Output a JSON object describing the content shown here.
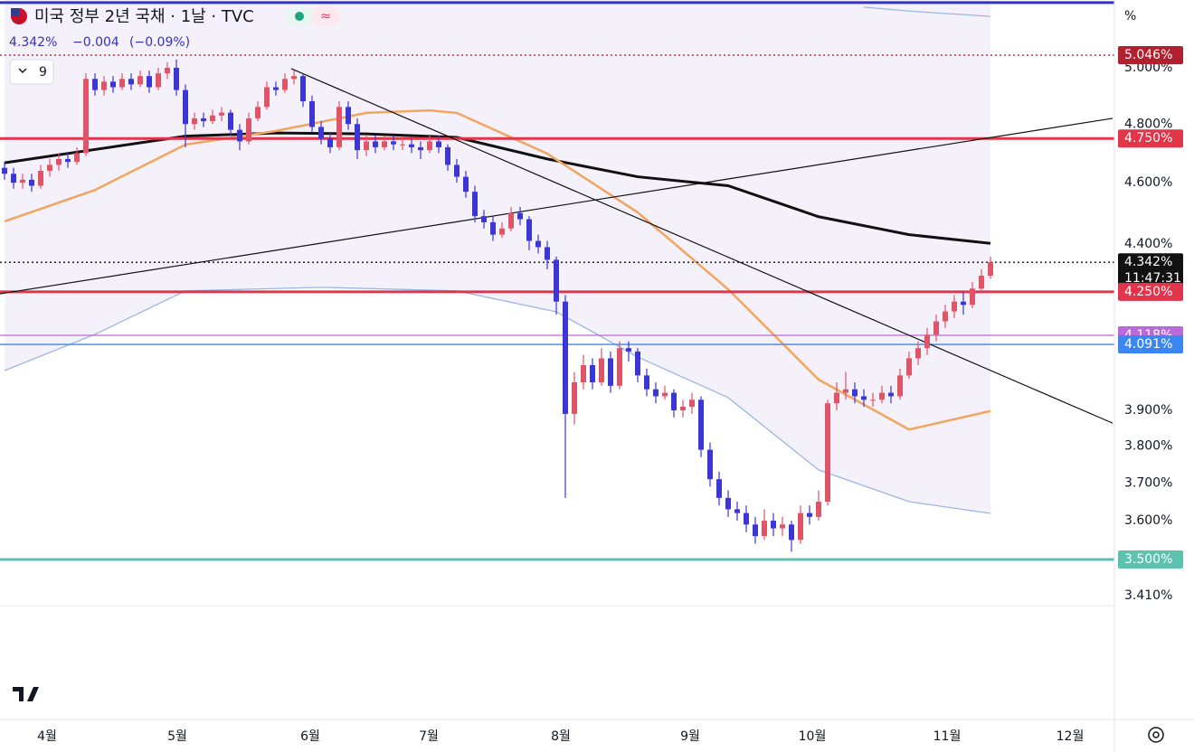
{
  "header": {
    "title": "미국 정부 2년 국채 · 1날 · TVC",
    "last": "4.342%",
    "change": "−0.004",
    "change_pct": "(−0.09%)",
    "collapsed_count": "9",
    "axis_unit": "%"
  },
  "chart_data": {
    "type": "candlestick",
    "log_scale": true,
    "grid": false,
    "up_color": "#e05468",
    "down_color": "#3c36d4",
    "xlim": [
      -0.5,
      122.7
    ],
    "ylim": [
      3.385,
      5.252
    ],
    "xticks": [
      {
        "value": 4.7,
        "label": "4월"
      },
      {
        "value": 19.1,
        "label": "5월"
      },
      {
        "value": 33.8,
        "label": "6월"
      },
      {
        "value": 46.9,
        "label": "7월"
      },
      {
        "value": 61.5,
        "label": "8월"
      },
      {
        "value": 75.8,
        "label": "9월"
      },
      {
        "value": 89.3,
        "label": "10월"
      },
      {
        "value": 104.2,
        "label": "11월"
      },
      {
        "value": 117.8,
        "label": "12월"
      }
    ],
    "yticks": [
      {
        "value": 3.41,
        "label": "3.410%"
      },
      {
        "value": 3.6,
        "label": "3.600%"
      },
      {
        "value": 3.7,
        "label": "3.700%"
      },
      {
        "value": 3.8,
        "label": "3.800%"
      },
      {
        "value": 3.9,
        "label": "3.900%"
      },
      {
        "value": 4.4,
        "label": "4.400%"
      },
      {
        "value": 4.6,
        "label": "4.600%"
      },
      {
        "value": 4.8,
        "label": "4.800%"
      },
      {
        "value": 5.0,
        "label": "5.000%"
      }
    ],
    "candles": [
      [
        4.65,
        4.67,
        4.61,
        4.63
      ],
      [
        4.63,
        4.65,
        4.58,
        4.6
      ],
      [
        4.6,
        4.63,
        4.58,
        4.61
      ],
      [
        4.61,
        4.63,
        4.57,
        4.59
      ],
      [
        4.59,
        4.66,
        4.58,
        4.64
      ],
      [
        4.64,
        4.68,
        4.62,
        4.66
      ],
      [
        4.66,
        4.7,
        4.64,
        4.68
      ],
      [
        4.68,
        4.7,
        4.65,
        4.67
      ],
      [
        4.67,
        4.72,
        4.66,
        4.7
      ],
      [
        4.7,
        4.98,
        4.69,
        4.96
      ],
      [
        4.96,
        4.98,
        4.9,
        4.92
      ],
      [
        4.92,
        4.97,
        4.9,
        4.95
      ],
      [
        4.95,
        4.97,
        4.91,
        4.93
      ],
      [
        4.93,
        4.98,
        4.92,
        4.96
      ],
      [
        4.96,
        4.98,
        4.92,
        4.94
      ],
      [
        4.94,
        4.99,
        4.93,
        4.97
      ],
      [
        4.97,
        4.99,
        4.91,
        4.93
      ],
      [
        4.93,
        5.0,
        4.92,
        4.98
      ],
      [
        4.98,
        5.02,
        4.96,
        5.0
      ],
      [
        5.0,
        5.03,
        4.9,
        4.92
      ],
      [
        4.92,
        4.94,
        4.72,
        4.8
      ],
      [
        4.8,
        4.84,
        4.78,
        4.82
      ],
      [
        4.82,
        4.84,
        4.79,
        4.81
      ],
      [
        4.81,
        4.85,
        4.8,
        4.83
      ],
      [
        4.83,
        4.86,
        4.81,
        4.84
      ],
      [
        4.84,
        4.85,
        4.76,
        4.78
      ],
      [
        4.78,
        4.8,
        4.71,
        4.74
      ],
      [
        4.74,
        4.84,
        4.73,
        4.82
      ],
      [
        4.82,
        4.88,
        4.81,
        4.86
      ],
      [
        4.86,
        4.95,
        4.85,
        4.93
      ],
      [
        4.93,
        4.95,
        4.9,
        4.92
      ],
      [
        4.92,
        4.98,
        4.91,
        4.96
      ],
      [
        4.96,
        4.99,
        4.94,
        4.97
      ],
      [
        4.97,
        4.98,
        4.86,
        4.88
      ],
      [
        4.88,
        4.9,
        4.77,
        4.79
      ],
      [
        4.79,
        4.81,
        4.73,
        4.75
      ],
      [
        4.75,
        4.77,
        4.7,
        4.72
      ],
      [
        4.72,
        4.88,
        4.71,
        4.86
      ],
      [
        4.86,
        4.88,
        4.78,
        4.8
      ],
      [
        4.8,
        4.82,
        4.68,
        4.71
      ],
      [
        4.71,
        4.76,
        4.69,
        4.74
      ],
      [
        4.74,
        4.76,
        4.7,
        4.72
      ],
      [
        4.72,
        4.76,
        4.71,
        4.74
      ],
      [
        4.74,
        4.76,
        4.71,
        4.73
      ],
      [
        4.73,
        4.75,
        4.71,
        4.73
      ],
      [
        4.73,
        4.75,
        4.7,
        4.72
      ],
      [
        4.72,
        4.74,
        4.68,
        4.71
      ],
      [
        4.71,
        4.76,
        4.7,
        4.74
      ],
      [
        4.74,
        4.76,
        4.7,
        4.72
      ],
      [
        4.72,
        4.73,
        4.64,
        4.66
      ],
      [
        4.66,
        4.68,
        4.6,
        4.62
      ],
      [
        4.62,
        4.64,
        4.55,
        4.57
      ],
      [
        4.57,
        4.59,
        4.47,
        4.49
      ],
      [
        4.49,
        4.51,
        4.45,
        4.47
      ],
      [
        4.47,
        4.49,
        4.41,
        4.43
      ],
      [
        4.43,
        4.47,
        4.42,
        4.45
      ],
      [
        4.45,
        4.52,
        4.44,
        4.5
      ],
      [
        4.5,
        4.52,
        4.46,
        4.48
      ],
      [
        4.48,
        4.49,
        4.38,
        4.41
      ],
      [
        4.41,
        4.43,
        4.37,
        4.39
      ],
      [
        4.39,
        4.41,
        4.32,
        4.35
      ],
      [
        4.35,
        4.36,
        4.18,
        4.22
      ],
      [
        4.22,
        4.24,
        3.66,
        3.89
      ],
      [
        3.89,
        4.01,
        3.86,
        3.98
      ],
      [
        3.98,
        4.06,
        3.96,
        4.03
      ],
      [
        4.03,
        4.05,
        3.96,
        3.98
      ],
      [
        3.98,
        4.08,
        3.97,
        4.05
      ],
      [
        4.05,
        4.07,
        3.95,
        3.97
      ],
      [
        3.97,
        4.1,
        3.96,
        4.08
      ],
      [
        4.08,
        4.1,
        4.04,
        4.07
      ],
      [
        4.07,
        4.08,
        3.98,
        4.0
      ],
      [
        4.0,
        4.02,
        3.94,
        3.96
      ],
      [
        3.96,
        3.98,
        3.92,
        3.94
      ],
      [
        3.94,
        3.97,
        3.93,
        3.95
      ],
      [
        3.95,
        3.96,
        3.88,
        3.9
      ],
      [
        3.9,
        3.93,
        3.88,
        3.91
      ],
      [
        3.91,
        3.95,
        3.89,
        3.93
      ],
      [
        3.93,
        3.94,
        3.77,
        3.79
      ],
      [
        3.79,
        3.81,
        3.69,
        3.71
      ],
      [
        3.71,
        3.73,
        3.64,
        3.66
      ],
      [
        3.66,
        3.68,
        3.61,
        3.63
      ],
      [
        3.63,
        3.65,
        3.6,
        3.62
      ],
      [
        3.62,
        3.64,
        3.57,
        3.59
      ],
      [
        3.59,
        3.61,
        3.54,
        3.56
      ],
      [
        3.56,
        3.63,
        3.55,
        3.6
      ],
      [
        3.6,
        3.62,
        3.56,
        3.58
      ],
      [
        3.58,
        3.61,
        3.56,
        3.59
      ],
      [
        3.59,
        3.6,
        3.52,
        3.55
      ],
      [
        3.55,
        3.64,
        3.54,
        3.62
      ],
      [
        3.62,
        3.64,
        3.59,
        3.61
      ],
      [
        3.61,
        3.68,
        3.6,
        3.65
      ],
      [
        3.65,
        3.93,
        3.64,
        3.92
      ],
      [
        3.92,
        3.98,
        3.9,
        3.95
      ],
      [
        3.95,
        4.01,
        3.93,
        3.96
      ],
      [
        3.96,
        3.98,
        3.92,
        3.94
      ],
      [
        3.94,
        3.96,
        3.91,
        3.93
      ],
      [
        3.93,
        3.95,
        3.91,
        3.93
      ],
      [
        3.93,
        3.97,
        3.92,
        3.95
      ],
      [
        3.95,
        3.97,
        3.92,
        3.94
      ],
      [
        3.94,
        4.02,
        3.93,
        4.0
      ],
      [
        4.0,
        4.07,
        3.99,
        4.05
      ],
      [
        4.05,
        4.1,
        4.03,
        4.08
      ],
      [
        4.08,
        4.14,
        4.06,
        4.12
      ],
      [
        4.12,
        4.18,
        4.1,
        4.16
      ],
      [
        4.16,
        4.21,
        4.14,
        4.19
      ],
      [
        4.19,
        4.24,
        4.17,
        4.22
      ],
      [
        4.22,
        4.25,
        4.18,
        4.21
      ],
      [
        4.21,
        4.28,
        4.2,
        4.26
      ],
      [
        4.26,
        4.32,
        4.25,
        4.3
      ],
      [
        4.3,
        4.36,
        4.29,
        4.342
      ]
    ],
    "band": {
      "color": "#f4f1fb",
      "lower": 2
    },
    "overlays": [
      {
        "color": "#111111",
        "style": "thick",
        "x": [
          0,
          20,
          30,
          40,
          50,
          60,
          70,
          80,
          90,
          100,
          109
        ],
        "values": [
          4.667,
          4.758,
          4.769,
          4.766,
          4.754,
          4.68,
          4.62,
          4.59,
          4.488,
          4.43,
          4.402
        ]
      },
      {
        "color": "#f2a55e",
        "style": "medium",
        "x": [
          0,
          10,
          20,
          30,
          40,
          47,
          50,
          60,
          70,
          80,
          90,
          100,
          109
        ],
        "values": [
          4.473,
          4.576,
          4.729,
          4.776,
          4.839,
          4.848,
          4.839,
          4.698,
          4.502,
          4.258,
          3.988,
          3.846,
          3.898
        ]
      },
      {
        "color": "#9bb6e6",
        "style": "thin",
        "x": [
          0,
          10,
          20,
          35,
          50,
          61,
          70,
          80,
          90,
          100,
          109
        ],
        "values": [
          4.014,
          4.121,
          4.253,
          4.264,
          4.253,
          4.189,
          4.054,
          3.936,
          3.735,
          3.65,
          3.619
        ]
      },
      {
        "color": "#9bb6e6",
        "style": "thin",
        "x": [
          95,
          100,
          109
        ],
        "values": [
          5.225,
          5.21,
          5.19
        ]
      }
    ],
    "trendlines": [
      {
        "color": "#111111",
        "x": [
          31.7,
          122.5
        ],
        "values": [
          4.997,
          3.864
        ]
      },
      {
        "color": "#111111",
        "x": [
          -0.5,
          122.5
        ],
        "values": [
          4.244,
          4.82
        ]
      }
    ],
    "levels": [
      {
        "value": 5.242,
        "color": "#3232c8",
        "style": "thick"
      },
      {
        "value": 5.046,
        "label": "5.046%",
        "color": "#b0202e",
        "style": "dotted"
      },
      {
        "value": 4.75,
        "label": "4.750%",
        "color": "#e0354b",
        "style": "thick"
      },
      {
        "value": 4.342,
        "label": "4.342%",
        "time": "11:47:31",
        "color": "#111111",
        "style": "dotted"
      },
      {
        "value": 4.25,
        "label": "4.250%",
        "color": "#e0354b",
        "style": "thick"
      },
      {
        "value": 4.118,
        "label": "4.118%",
        "color": "#b86bd8",
        "style": "thin"
      },
      {
        "value": 4.091,
        "label": "4.091%",
        "color": "#3b86f0",
        "style": "thin"
      },
      {
        "value": 3.5,
        "label": "3.500%",
        "color": "#5cc2ae",
        "style": "thick"
      }
    ]
  }
}
